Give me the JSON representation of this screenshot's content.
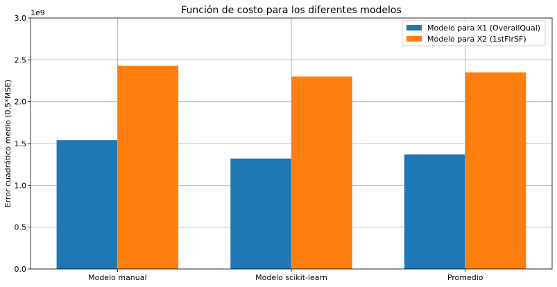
{
  "chart_data": {
    "type": "bar",
    "title": "Función de costo para los diferentes modelos",
    "xlabel": "",
    "ylabel": "Error cuadrático medio (0.5*MSE)",
    "y_scale_label": "1e9",
    "categories": [
      "Modelo manual",
      "Modelo scikit-learn",
      "Promedio"
    ],
    "series": [
      {
        "name": "Modelo para X1 (OverallQual)",
        "color": "#1f77b4",
        "values": [
          1.54,
          1.32,
          1.37
        ]
      },
      {
        "name": "Modelo para X2 (1stFlrSF)",
        "color": "#ff7f0e",
        "values": [
          2.43,
          2.3,
          2.35
        ]
      }
    ],
    "ylim": [
      0,
      3.0
    ],
    "yticks": [
      "0.0",
      "0.5",
      "1.0",
      "1.5",
      "2.0",
      "2.5",
      "3.0"
    ],
    "grid": true,
    "legend_position": "top-right"
  }
}
